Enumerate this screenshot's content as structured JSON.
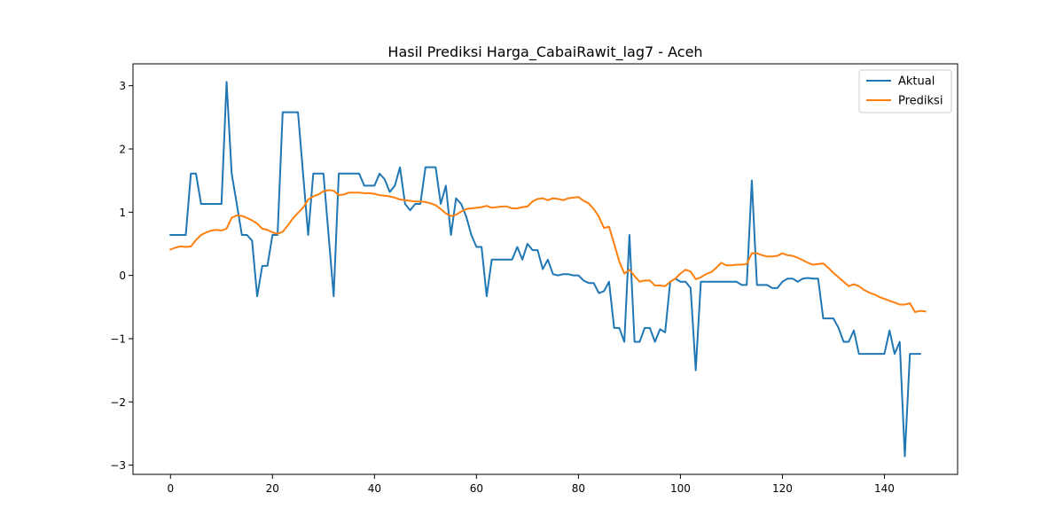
{
  "chart_data": {
    "type": "line",
    "title": "Hasil Prediksi Harga_CabaiRawit_lag7 - Aceh",
    "xlabel": "",
    "ylabel": "",
    "xlim": [
      -7.35,
      154.35
    ],
    "ylim": [
      -3.146,
      3.346
    ],
    "xticks": [
      0,
      20,
      40,
      60,
      80,
      100,
      120,
      140
    ],
    "yticks": [
      -3,
      -2,
      -1,
      0,
      1,
      2,
      3
    ],
    "grid": false,
    "legend_position": "top-right",
    "series": [
      {
        "name": "Aktual",
        "color": "#1f77b4",
        "values": [
          0.64,
          0.64,
          0.64,
          0.64,
          1.61,
          1.61,
          1.13,
          1.13,
          1.13,
          1.13,
          1.13,
          3.06,
          1.61,
          1.13,
          0.64,
          0.64,
          0.55,
          -0.33,
          0.15,
          0.15,
          0.64,
          0.64,
          2.58,
          2.58,
          2.58,
          2.58,
          1.61,
          0.64,
          1.61,
          1.61,
          1.61,
          0.64,
          -0.33,
          1.61,
          1.61,
          1.61,
          1.61,
          1.61,
          1.42,
          1.42,
          1.42,
          1.61,
          1.52,
          1.32,
          1.42,
          1.71,
          1.13,
          1.03,
          1.13,
          1.13,
          1.71,
          1.71,
          1.71,
          1.13,
          1.42,
          0.64,
          1.22,
          1.13,
          0.93,
          0.64,
          0.45,
          0.45,
          -0.33,
          0.25,
          0.25,
          0.25,
          0.25,
          0.25,
          0.45,
          0.25,
          0.5,
          0.4,
          0.4,
          0.1,
          0.25,
          0.02,
          0.0,
          0.02,
          0.02,
          0.0,
          0.0,
          -0.08,
          -0.12,
          -0.12,
          -0.28,
          -0.25,
          -0.1,
          -0.83,
          -0.83,
          -1.05,
          0.64,
          -1.05,
          -1.05,
          -0.83,
          -0.83,
          -1.05,
          -0.85,
          -0.9,
          -0.1,
          -0.05,
          -0.1,
          -0.1,
          -0.2,
          -1.5,
          -0.1,
          -0.1,
          -0.1,
          -0.1,
          -0.1,
          -0.1,
          -0.1,
          -0.1,
          -0.15,
          -0.15,
          1.5,
          -0.15,
          -0.15,
          -0.15,
          -0.2,
          -0.2,
          -0.1,
          -0.05,
          -0.05,
          -0.1,
          -0.05,
          -0.04,
          -0.05,
          -0.05,
          -0.68,
          -0.68,
          -0.68,
          -0.83,
          -1.05,
          -1.05,
          -0.87,
          -1.24,
          -1.24,
          -1.24,
          -1.24,
          -1.24,
          -1.24,
          -0.87,
          -1.24,
          -1.05,
          -2.86,
          -1.24,
          -1.24,
          -1.24
        ]
      },
      {
        "name": "Prediksi",
        "color": "#ff7f0e",
        "values": [
          0.41,
          0.44,
          0.46,
          0.45,
          0.46,
          0.56,
          0.64,
          0.68,
          0.71,
          0.72,
          0.71,
          0.74,
          0.91,
          0.95,
          0.94,
          0.91,
          0.87,
          0.82,
          0.74,
          0.72,
          0.68,
          0.66,
          0.69,
          0.79,
          0.9,
          0.99,
          1.07,
          1.2,
          1.25,
          1.28,
          1.33,
          1.35,
          1.34,
          1.27,
          1.28,
          1.31,
          1.31,
          1.31,
          1.3,
          1.3,
          1.29,
          1.27,
          1.26,
          1.25,
          1.23,
          1.2,
          1.19,
          1.18,
          1.17,
          1.17,
          1.16,
          1.14,
          1.11,
          1.05,
          0.98,
          0.94,
          0.96,
          1.01,
          1.05,
          1.06,
          1.07,
          1.08,
          1.1,
          1.07,
          1.08,
          1.09,
          1.09,
          1.06,
          1.06,
          1.08,
          1.09,
          1.17,
          1.21,
          1.22,
          1.19,
          1.22,
          1.21,
          1.19,
          1.22,
          1.23,
          1.24,
          1.18,
          1.14,
          1.05,
          0.93,
          0.75,
          0.77,
          0.5,
          0.22,
          0.03,
          0.09,
          -0.01,
          -0.1,
          -0.08,
          -0.08,
          -0.16,
          -0.16,
          -0.17,
          -0.1,
          -0.05,
          0.03,
          0.09,
          0.06,
          -0.06,
          -0.03,
          0.02,
          0.05,
          0.12,
          0.2,
          0.16,
          0.16,
          0.17,
          0.17,
          0.18,
          0.35,
          0.35,
          0.32,
          0.3,
          0.3,
          0.31,
          0.35,
          0.32,
          0.31,
          0.28,
          0.24,
          0.2,
          0.17,
          0.18,
          0.19,
          0.12,
          0.04,
          -0.03,
          -0.1,
          -0.17,
          -0.14,
          -0.17,
          -0.23,
          -0.27,
          -0.3,
          -0.34,
          -0.37,
          -0.4,
          -0.43,
          -0.46,
          -0.46,
          -0.44,
          -0.58,
          -0.56,
          -0.57
        ]
      }
    ]
  }
}
